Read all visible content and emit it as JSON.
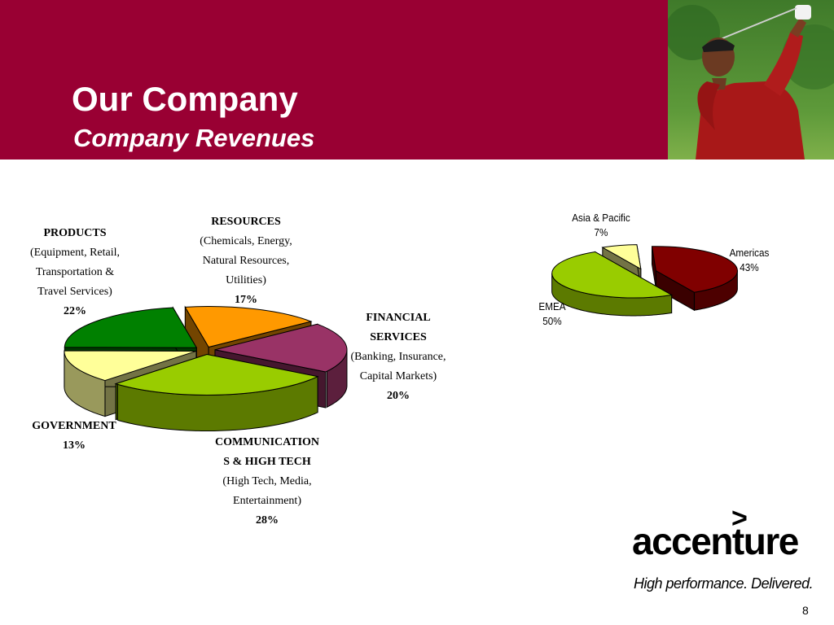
{
  "slide": {
    "title": "Our Company",
    "subtitle": "Company Revenues",
    "page_number": "8"
  },
  "brand": {
    "logo_text": "accenture",
    "logo_mark": ">",
    "tagline": "High performance. Delivered.",
    "accent_color": "#990033"
  },
  "chart_data": [
    {
      "type": "pie",
      "categories": [
        "RESOURCES",
        "FINANCIAL SERVICES",
        "COMMUNICATIONS & HIGH TECH",
        "GOVERNMENT",
        "PRODUCTS"
      ],
      "values": [
        17,
        20,
        28,
        13,
        22
      ],
      "colors": [
        "#ff9900",
        "#993366",
        "#99cc00",
        "#ffff99",
        "#008000"
      ],
      "labels": [
        {
          "heading": "RESOURCES",
          "detail": [
            "(Chemicals, Energy,",
            "Natural Resources,",
            "Utilities)"
          ],
          "percent": "17%"
        },
        {
          "heading": "FINANCIAL SERVICES",
          "heading_lines": [
            "FINANCIAL",
            "SERVICES"
          ],
          "detail": [
            "(Banking, Insurance,",
            "Capital Markets)"
          ],
          "percent": "20%"
        },
        {
          "heading": "COMMUNICATIONS & HIGH TECH",
          "heading_lines": [
            "COMMUNICATION",
            "S & HIGH TECH"
          ],
          "detail": [
            "(High Tech, Media,",
            "Entertainment)"
          ],
          "percent": "28%"
        },
        {
          "heading": "GOVERNMENT",
          "detail": [],
          "percent": "13%"
        },
        {
          "heading": "PRODUCTS",
          "detail": [
            "(Equipment, Retail,",
            "Transportation &",
            "Travel Services)"
          ],
          "percent": "22%"
        }
      ]
    },
    {
      "type": "pie",
      "categories": [
        "Americas",
        "EMEA",
        "Asia & Pacific"
      ],
      "values": [
        43,
        50,
        7
      ],
      "colors": [
        "#800000",
        "#99cc00",
        "#ffff99"
      ],
      "labels": [
        {
          "name": "Americas",
          "percent": "43%"
        },
        {
          "name": "EMEA",
          "percent": "50%"
        },
        {
          "name": "Asia & Pacific",
          "percent": "7%"
        }
      ]
    }
  ]
}
